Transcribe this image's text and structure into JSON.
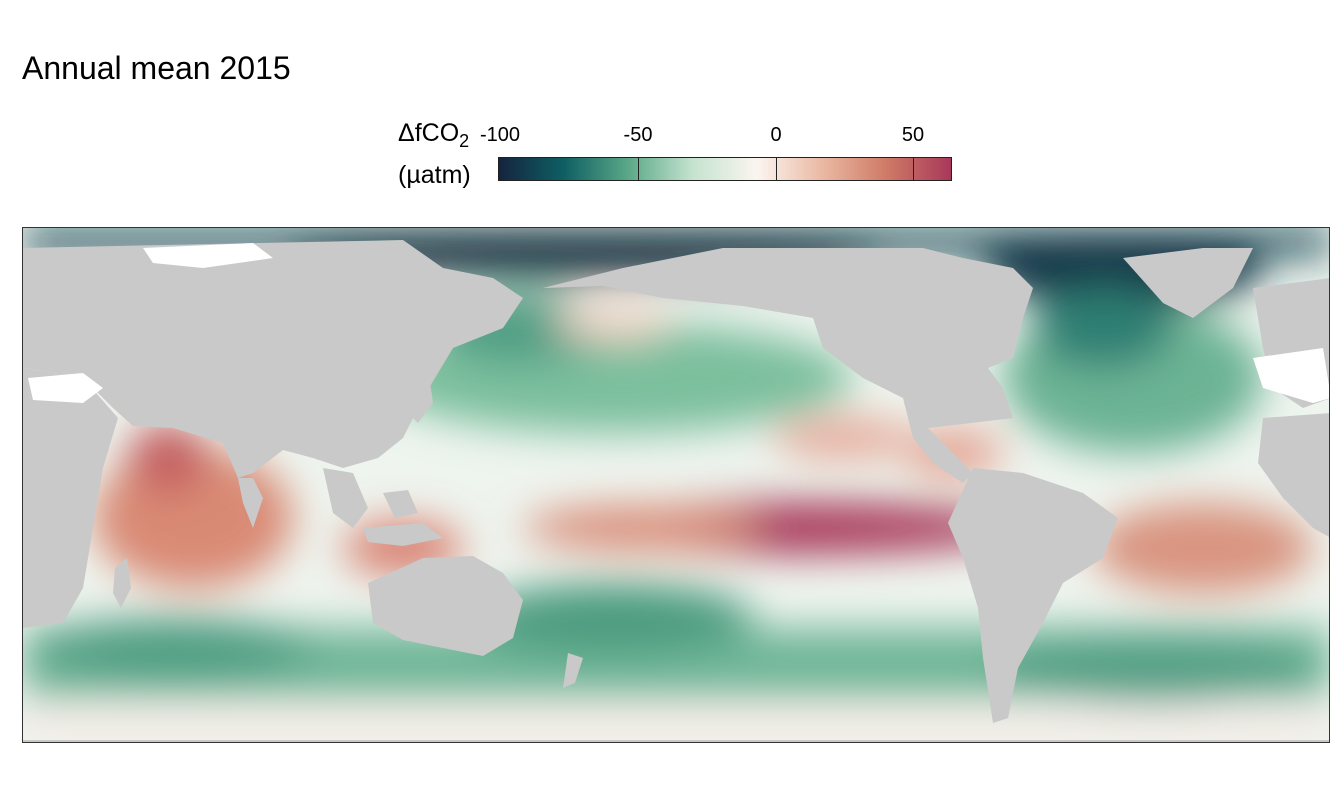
{
  "title": "Annual mean 2015",
  "legend": {
    "title_main": "ΔfCO",
    "title_sub": "2",
    "unit": "(µatm)",
    "ticks": [
      "-100",
      "-50",
      "0",
      "50"
    ],
    "tick_values": [
      -100,
      -50,
      0,
      50
    ],
    "range": [
      -100,
      65
    ],
    "colors": [
      "#15243e",
      "#0e5f63",
      "#5aa888",
      "#c5e3cf",
      "#fbf5f0",
      "#eab9a3",
      "#cf7a66",
      "#a8385a"
    ]
  },
  "map": {
    "land_color": "#c9c9c9",
    "no_data_color": "#ffffff",
    "projection": "equirectangular, Pacific-centred"
  }
}
